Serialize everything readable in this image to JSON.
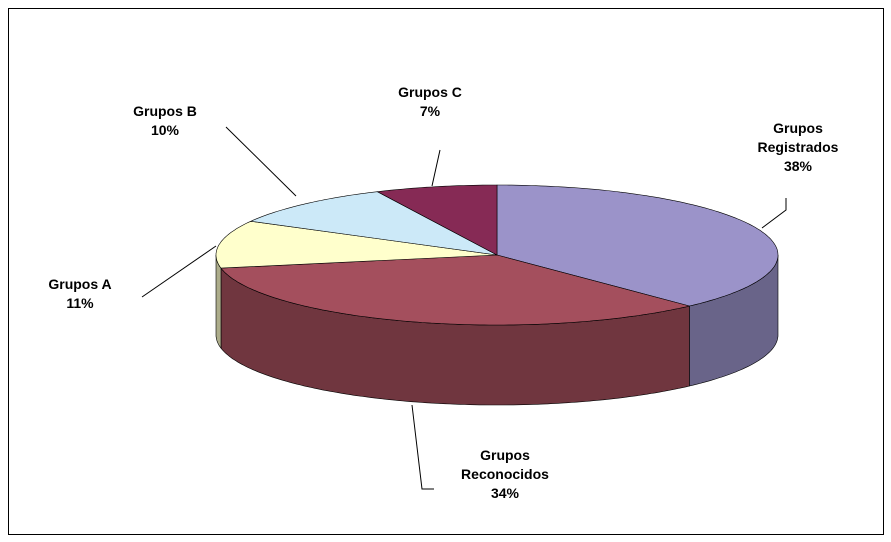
{
  "chart_data": {
    "type": "pie3d",
    "categories": [
      "Grupos Registrados",
      "Grupos Reconocidos",
      "Grupos A",
      "Grupos B",
      "Grupos C"
    ],
    "values": [
      38,
      34,
      11,
      10,
      7
    ],
    "value_labels": [
      "38%",
      "34%",
      "11%",
      "10%",
      "7%"
    ],
    "colors": [
      "#9b93c9",
      "#a44f5d",
      "#ffffcc",
      "#cce9f8",
      "#862a55"
    ]
  }
}
